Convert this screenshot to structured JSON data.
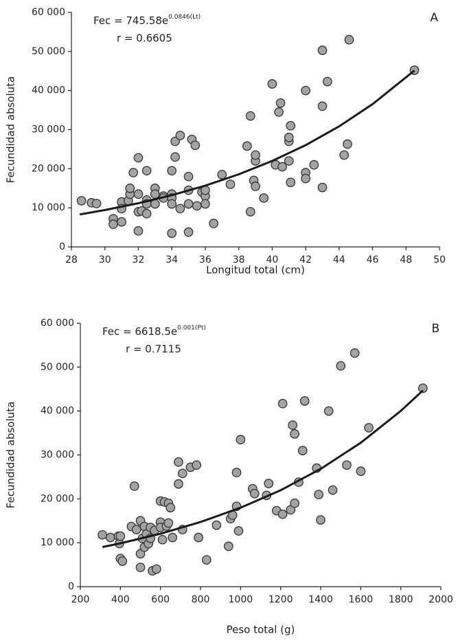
{
  "chart_data": [
    {
      "type": "scatter",
      "panel": "A",
      "equation": "Fec = 745.58e",
      "exponent": "0.0846(Lt)",
      "r_text": "r = 0.6605",
      "x_label": "Longitud total (cm)",
      "y_label": "Fecundidad absoluta",
      "xlim": [
        28,
        50
      ],
      "xticks": [
        28,
        30,
        32,
        34,
        36,
        38,
        40,
        42,
        44,
        46,
        48,
        50
      ],
      "ylim": [
        0,
        60000
      ],
      "yticks": [
        0,
        {
          "value": 10000,
          "label": "10 000"
        },
        {
          "value": 20000,
          "label": "20 000"
        },
        {
          "value": 30000,
          "label": "30 000"
        },
        {
          "value": 40000,
          "label": "40 000"
        },
        {
          "value": 50000,
          "label": "50 000"
        },
        {
          "value": 60000,
          "label": "60 000"
        }
      ],
      "color": "#a3a3a3",
      "x": [
        28.6,
        29.2,
        29.5,
        30.5,
        30.5,
        31,
        31,
        31,
        31.4,
        31.5,
        31.5,
        31.7,
        32,
        32,
        32,
        32,
        32.2,
        32.5,
        32.5,
        32.5,
        32.5,
        33,
        33,
        33,
        33.5,
        33.5,
        34,
        34,
        34,
        34,
        34,
        34.2,
        34.2,
        34.5,
        34.5,
        35,
        35,
        35,
        35,
        35.2,
        35.4,
        35.5,
        35.8,
        36,
        36,
        36,
        36.5,
        37,
        37.5,
        38.5,
        38.7,
        38.7,
        38.9,
        39,
        39,
        39,
        39.5,
        40,
        40.2,
        40.4,
        40.5,
        40.6,
        41,
        41,
        41,
        41.1,
        41.1,
        42,
        42,
        42,
        42.5,
        43,
        43,
        43,
        43.3,
        44.3,
        44.5,
        44.6,
        48.5
      ],
      "values": [
        11800,
        11300,
        11100,
        7200,
        5800,
        11500,
        9800,
        6400,
        11800,
        13500,
        15000,
        19000,
        22800,
        13500,
        9000,
        4100,
        9200,
        19500,
        12000,
        11000,
        8500,
        15000,
        13500,
        11000,
        13000,
        12500,
        19500,
        13500,
        12500,
        11000,
        3500,
        27000,
        23000,
        28500,
        9800,
        18000,
        14500,
        11000,
        3800,
        27500,
        26000,
        10500,
        14000,
        13000,
        11000,
        14500,
        6000,
        18500,
        16000,
        25800,
        33500,
        9000,
        17000,
        22000,
        23500,
        15500,
        12500,
        41700,
        21000,
        34500,
        36800,
        20500,
        27000,
        28000,
        22000,
        31000,
        16500,
        40000,
        19000,
        17500,
        21000,
        50300,
        36000,
        15200,
        42300,
        23500,
        26300,
        53000,
        45200
      ],
      "fit": {
        "color": "#1a1a1a",
        "x": [
          28.5,
          30,
          32,
          34,
          36,
          38,
          40,
          42,
          44,
          46,
          48.5
        ],
        "values": [
          8310,
          9430,
          11180,
          13240,
          15680,
          18570,
          21990,
          26040,
          30850,
          36530,
          45110
        ]
      }
    },
    {
      "type": "scatter",
      "panel": "B",
      "equation": "Fec = 6618.5e",
      "exponent": "0.001(Pt)",
      "r_text": "r = 0.7115",
      "x_label": "Peso total (g)",
      "y_label": "Fecundidad absoluta",
      "xlim": [
        200,
        2000
      ],
      "xticks": [
        200,
        400,
        600,
        800,
        1000,
        1200,
        1400,
        1600,
        1800,
        2000
      ],
      "ylim": [
        0,
        60000
      ],
      "yticks": [
        0,
        {
          "value": 10000,
          "label": "10 000"
        },
        {
          "value": 20000,
          "label": "20 000"
        },
        {
          "value": 30000,
          "label": "30 000"
        },
        {
          "value": 40000,
          "label": "40 000"
        },
        {
          "value": 50000,
          "label": "50 000"
        },
        {
          "value": 60000,
          "label": "60 000"
        }
      ],
      "color": "#a3a3a3",
      "x": [
        310,
        350,
        390,
        395,
        400,
        400,
        410,
        455,
        470,
        480,
        500,
        500,
        500,
        510,
        520,
        520,
        530,
        540,
        550,
        550,
        560,
        570,
        580,
        600,
        600,
        600,
        610,
        620,
        630,
        640,
        640,
        650,
        660,
        690,
        690,
        710,
        710,
        750,
        780,
        790,
        830,
        880,
        940,
        950,
        960,
        980,
        980,
        990,
        1000,
        1060,
        1070,
        1130,
        1140,
        1180,
        1210,
        1210,
        1250,
        1260,
        1270,
        1270,
        1290,
        1310,
        1320,
        1380,
        1390,
        1400,
        1440,
        1460,
        1500,
        1530,
        1570,
        1600,
        1640,
        1910
      ],
      "values": [
        11800,
        11200,
        11500,
        9800,
        11500,
        6400,
        5800,
        13700,
        22900,
        13000,
        15000,
        7500,
        4400,
        11000,
        13700,
        9000,
        12000,
        9800,
        11000,
        13500,
        3600,
        12800,
        4000,
        19500,
        14700,
        13500,
        10700,
        19300,
        13800,
        19000,
        14500,
        18000,
        11200,
        28400,
        23400,
        25800,
        13000,
        27200,
        27700,
        11200,
        6100,
        14000,
        9200,
        15500,
        16300,
        18300,
        26000,
        12700,
        33500,
        22300,
        21200,
        20800,
        23500,
        17300,
        41700,
        16500,
        17500,
        36800,
        19000,
        34800,
        23800,
        31000,
        42300,
        27000,
        21000,
        15200,
        40000,
        22000,
        50300,
        27700,
        53200,
        26300,
        36200,
        45200
      ],
      "fit": {
        "color": "#1a1a1a",
        "x": [
          310,
          400,
          600,
          800,
          1000,
          1200,
          1400,
          1600,
          1800,
          1910
        ],
        "values": [
          9024,
          9874,
          12060,
          14730,
          17990,
          21970,
          26840,
          32780,
          40040,
          44700
        ]
      }
    }
  ]
}
